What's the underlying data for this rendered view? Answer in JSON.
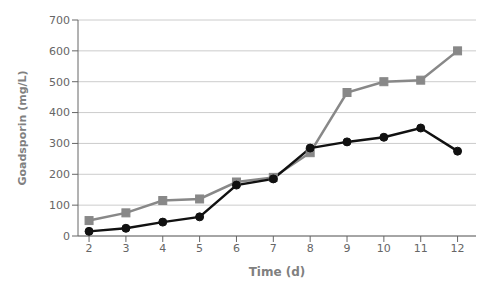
{
  "chart_data": {
    "type": "line",
    "x": [
      2,
      3,
      4,
      5,
      6,
      7,
      8,
      9,
      10,
      11,
      12
    ],
    "series": [
      {
        "color": "#888888",
        "marker": "square",
        "values": [
          50,
          75,
          115,
          120,
          175,
          190,
          270,
          465,
          500,
          505,
          600
        ]
      },
      {
        "color": "#111111",
        "marker": "circle",
        "values": [
          15,
          25,
          45,
          62,
          165,
          185,
          285,
          305,
          320,
          350,
          275
        ]
      }
    ],
    "xlabel": "Time (d)",
    "ylabel": "Goadsporin (mg/L)",
    "xlim": [
      1.7,
      12.5
    ],
    "ylim": [
      0,
      700
    ],
    "xticks": [
      2,
      3,
      4,
      5,
      6,
      7,
      8,
      9,
      10,
      11,
      12
    ],
    "yticks": [
      0,
      100,
      200,
      300,
      400,
      500,
      600,
      700
    ],
    "grid": "y"
  }
}
